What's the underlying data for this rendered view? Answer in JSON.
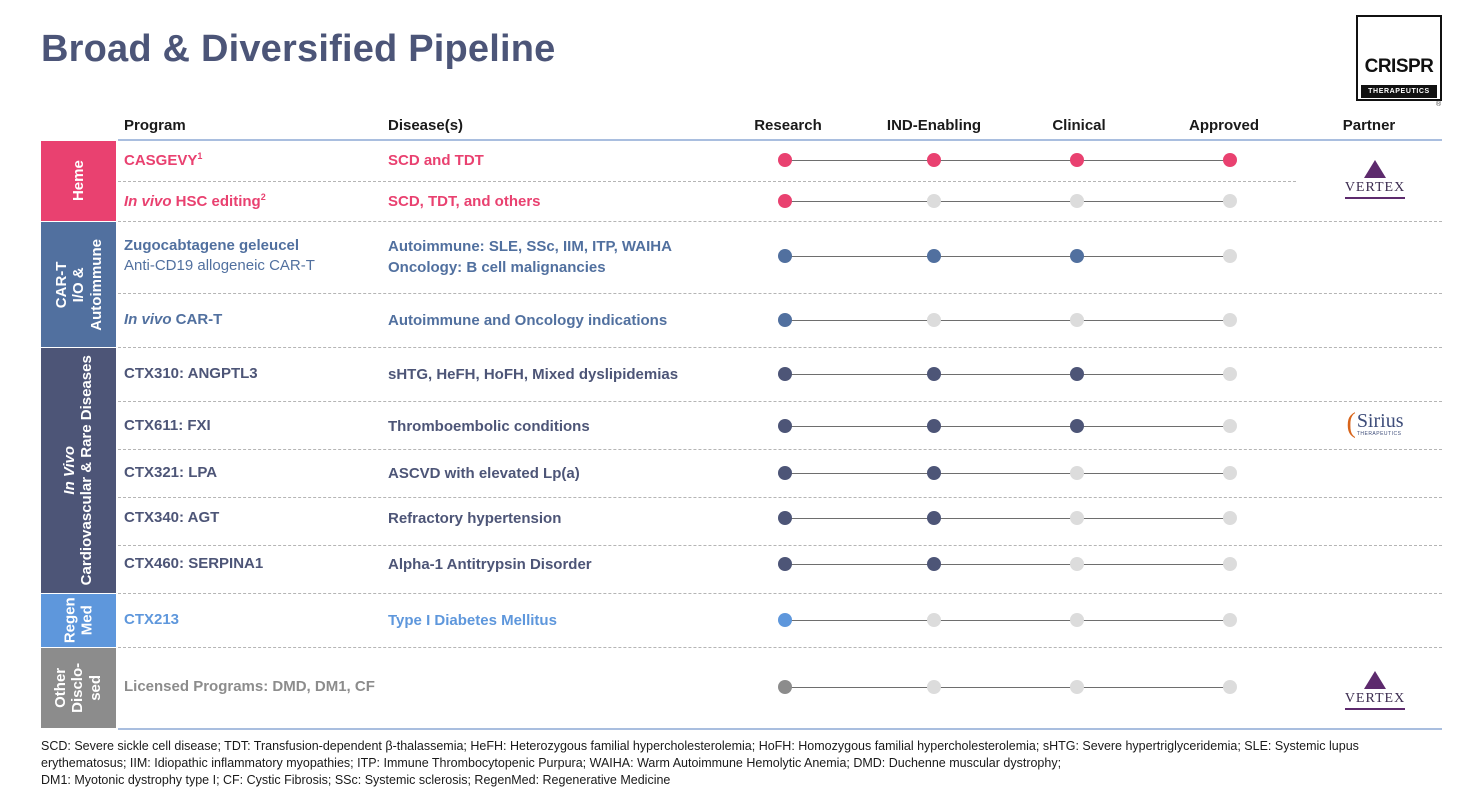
{
  "title": "Broad & Diversified Pipeline",
  "logo": {
    "text": "CRISPR",
    "subtext": "THERAPEUTICS",
    "mark": "®"
  },
  "headers": {
    "program": "Program",
    "disease": "Disease(s)",
    "stages": [
      "Research",
      "IND-Enabling",
      "Clinical",
      "Approved"
    ],
    "partner": "Partner"
  },
  "colors": {
    "heme": "#e94170",
    "cart": "#51709f",
    "invivo": "#4d5577",
    "regen": "#5e97dc",
    "other": "#8c8c8c",
    "inactive_dot": "#dcdcdc"
  },
  "categories": {
    "heme": "Heme",
    "cart": [
      "CAR-T",
      "I/O &",
      "Autoimmune"
    ],
    "invivo": [
      "In Vivo",
      "Cardiovascular  & Rare Diseases"
    ],
    "regen": [
      "Regen",
      "Med"
    ],
    "other": [
      "Other",
      "Disclo-",
      "sed"
    ]
  },
  "programs": [
    {
      "pre": "",
      "name": "CASGEVY",
      "sup": "1",
      "sub": "",
      "disease": "SCD and TDT",
      "disease2": "",
      "stage": 4,
      "partner": "vertex"
    },
    {
      "pre": "In vivo",
      "name": " HSC editing",
      "sup": "2",
      "sub": "",
      "disease": "SCD, TDT, and others",
      "disease2": "",
      "stage": 1,
      "partner": ""
    },
    {
      "pre": "",
      "name": "Zugocabtagene geleucel",
      "sup": "",
      "sub": "Anti-CD19 allogeneic CAR-T",
      "disease": "Autoimmune: SLE, SSc, IIM, ITP, WAIHA",
      "disease2": "Oncology: B cell malignancies",
      "stage": 3,
      "partner": ""
    },
    {
      "pre": "In vivo",
      "name": " CAR-T",
      "sup": "",
      "sub": "",
      "disease": "Autoimmune and Oncology indications",
      "disease2": "",
      "stage": 1,
      "partner": ""
    },
    {
      "pre": "",
      "name": "CTX310: ANGPTL3",
      "sup": "",
      "sub": "",
      "disease": "sHTG, HeFH, HoFH, Mixed dyslipidemias",
      "disease2": "",
      "stage": 3,
      "partner": ""
    },
    {
      "pre": "",
      "name": "CTX611: FXI",
      "sup": "",
      "sub": "",
      "disease": "Thromboembolic conditions",
      "disease2": "",
      "stage": 3,
      "partner": "sirius"
    },
    {
      "pre": "",
      "name": "CTX321: LPA",
      "sup": "",
      "sub": "",
      "disease": "ASCVD with elevated Lp(a)",
      "disease2": "",
      "stage": 2,
      "partner": ""
    },
    {
      "pre": "",
      "name": "CTX340: AGT",
      "sup": "",
      "sub": "",
      "disease": "Refractory hypertension",
      "disease2": "",
      "stage": 2,
      "partner": ""
    },
    {
      "pre": "",
      "name": "CTX460: SERPINA1",
      "sup": "",
      "sub": "",
      "disease": "Alpha-1 Antitrypsin Disorder",
      "disease2": "",
      "stage": 2,
      "partner": ""
    },
    {
      "pre": "",
      "name": "CTX213",
      "sup": "",
      "sub": "",
      "disease": "Type I Diabetes Mellitus",
      "disease2": "",
      "stage": 1,
      "partner": ""
    },
    {
      "pre": "",
      "name": "Licensed Programs: DMD, DM1, CF",
      "sup": "",
      "sub": "",
      "disease": "",
      "disease2": "",
      "stage": 1,
      "partner": "vertex"
    }
  ],
  "partners": {
    "vertex": "VERTEX",
    "sirius": {
      "name": "Sirius",
      "sub": "THERAPEUTICS"
    }
  },
  "footnote": [
    "SCD: Severe sickle cell disease; TDT: Transfusion-dependent β-thalassemia; HeFH: Heterozygous familial hypercholesterolemia; HoFH: Homozygous familial hypercholesterolemia; sHTG: Severe hypertriglyceridemia; SLE: Systemic lupus erythematosus; IIM: Idiopathic inflammatory myopathies; ITP: Immune Thrombocytopenic Purpura; WAIHA: Warm Autoimmune Hemolytic Anemia; DMD: Duchenne muscular dystrophy;",
    "DM1: Myotonic dystrophy type I; CF: Cystic Fibrosis; SSc: Systemic sclerosis; RegenMed: Regenerative Medicine"
  ]
}
